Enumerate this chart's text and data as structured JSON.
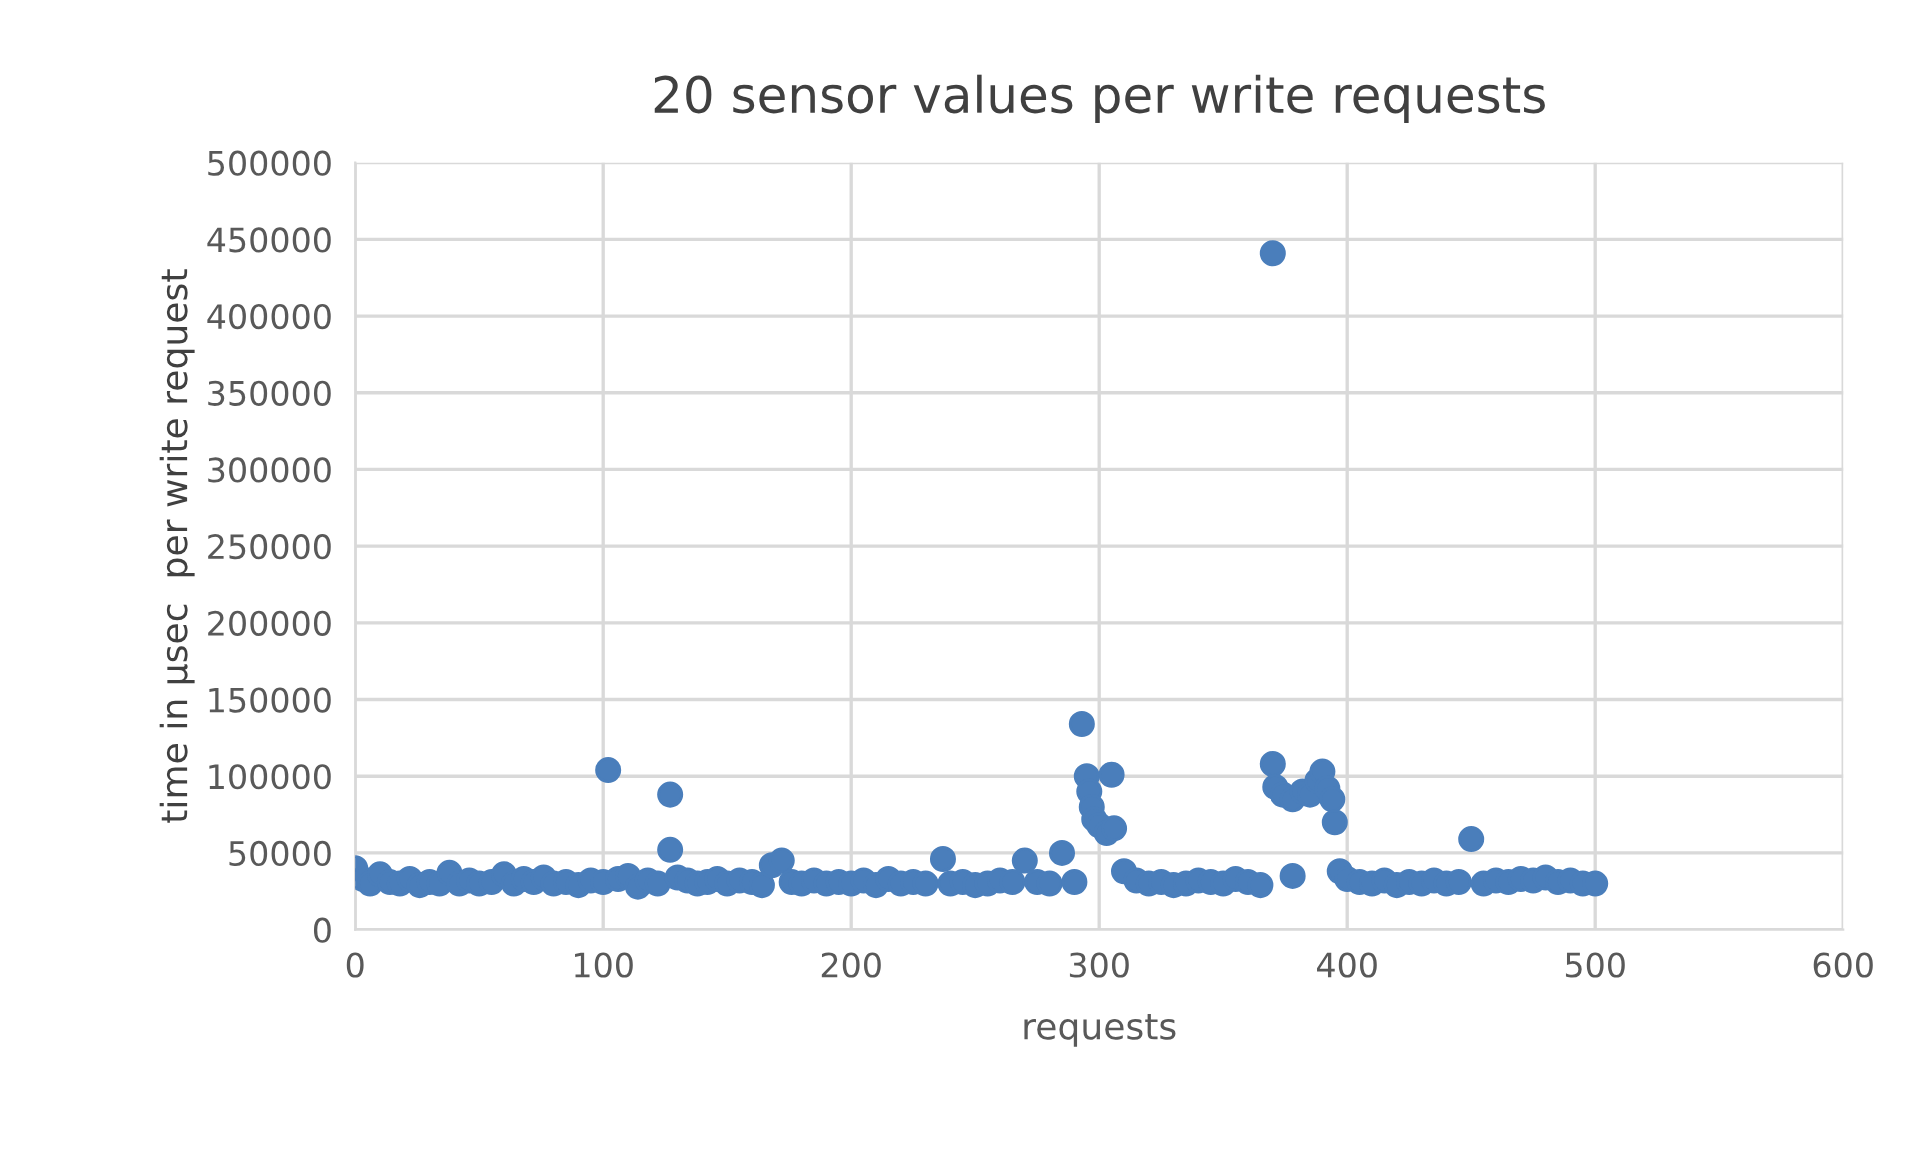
{
  "chart_data": {
    "type": "scatter",
    "title": "20 sensor values per write requests",
    "xlabel": "requests",
    "ylabel": "time in µsec  per write request",
    "series": [
      {
        "color": "#4a7ebb",
        "x": [
          0,
          3,
          6,
          10,
          14,
          18,
          22,
          26,
          30,
          34,
          38,
          42,
          46,
          50,
          55,
          60,
          64,
          68,
          72,
          76,
          80,
          85,
          90,
          95,
          100,
          102,
          106,
          110,
          114,
          118,
          122,
          127,
          127,
          130,
          134,
          138,
          142,
          146,
          150,
          155,
          160,
          164,
          168,
          172,
          176,
          180,
          185,
          190,
          195,
          200,
          205,
          210,
          215,
          220,
          225,
          230,
          237,
          240,
          245,
          250,
          255,
          260,
          265,
          270,
          275,
          280,
          285,
          290,
          293,
          295,
          296,
          297,
          298,
          300,
          303,
          305,
          306,
          310,
          315,
          320,
          325,
          330,
          335,
          340,
          345,
          350,
          355,
          360,
          365,
          370,
          370,
          371,
          374,
          378,
          378,
          382,
          385,
          388,
          390,
          392,
          394,
          395,
          397,
          400,
          405,
          410,
          415,
          420,
          425,
          430,
          435,
          440,
          445,
          450,
          455,
          460,
          465,
          470,
          475,
          480,
          485,
          490,
          495,
          500
        ],
        "values": [
          40000,
          33000,
          30000,
          36000,
          31000,
          30000,
          33000,
          29000,
          31000,
          30000,
          37000,
          30000,
          32000,
          30000,
          31000,
          36000,
          30000,
          33000,
          31000,
          34000,
          30000,
          31000,
          29000,
          32000,
          31000,
          104000,
          33000,
          35000,
          28000,
          32000,
          30000,
          88000,
          52000,
          34000,
          32000,
          30000,
          31000,
          33000,
          30000,
          32000,
          31000,
          29000,
          42000,
          45000,
          31000,
          30000,
          32000,
          30000,
          31000,
          30000,
          32000,
          29000,
          33000,
          30000,
          31000,
          30000,
          46000,
          30000,
          31000,
          29000,
          30000,
          32000,
          31000,
          45000,
          31000,
          30000,
          50000,
          31000,
          134000,
          100000,
          90000,
          80000,
          72000,
          68000,
          63000,
          101000,
          66000,
          38000,
          32000,
          30000,
          31000,
          29000,
          30000,
          32000,
          31000,
          30000,
          33000,
          31000,
          29000,
          441000,
          108000,
          93000,
          88000,
          85000,
          35000,
          90000,
          88000,
          97000,
          103000,
          92000,
          85000,
          70000,
          38000,
          33000,
          31000,
          30000,
          32000,
          29000,
          31000,
          30000,
          32000,
          30000,
          31000,
          59000,
          30000,
          32000,
          31000,
          33000,
          32000,
          34000,
          31000,
          32000,
          30000,
          30000
        ]
      }
    ],
    "xlim": [
      0,
      600
    ],
    "xticks": [
      0,
      100,
      200,
      300,
      400,
      500,
      600
    ],
    "ylim": [
      0,
      500000
    ],
    "yticks": [
      0,
      50000,
      100000,
      150000,
      200000,
      250000,
      300000,
      350000,
      400000,
      450000,
      500000
    ],
    "grid": true,
    "marker": "circle",
    "legend": false
  }
}
